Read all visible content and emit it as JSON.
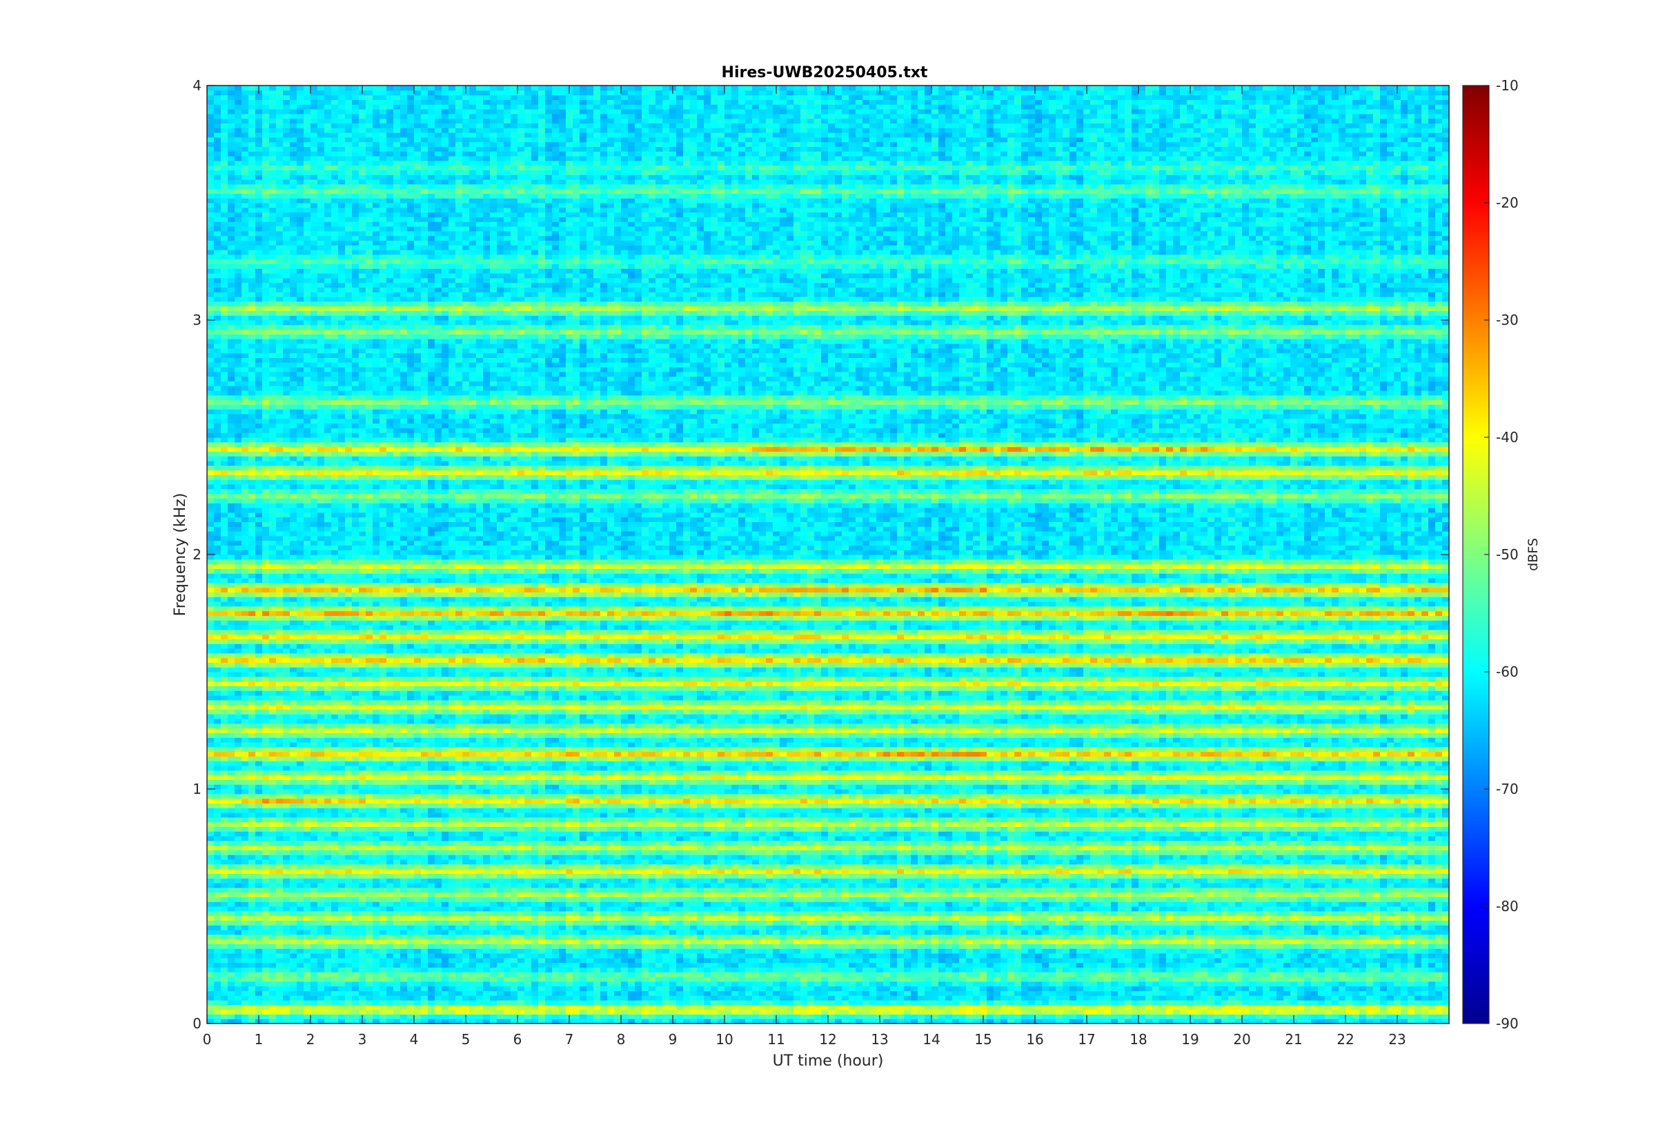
{
  "chart_data": {
    "type": "heatmap",
    "title": "Hires-UWB20250405.txt",
    "xlabel": "UT time (hour)",
    "ylabel": "Frequency (kHz)",
    "xlim": [
      0,
      24
    ],
    "ylim": [
      0,
      4
    ],
    "x_ticks": [
      "0",
      "1",
      "2",
      "3",
      "4",
      "5",
      "6",
      "7",
      "8",
      "9",
      "10",
      "11",
      "12",
      "13",
      "14",
      "15",
      "16",
      "17",
      "18",
      "19",
      "20",
      "21",
      "22",
      "23"
    ],
    "y_ticks": [
      "0",
      "1",
      "2",
      "3",
      "4"
    ],
    "colorbar": {
      "label": "dBFS",
      "limits": [
        -90,
        -10
      ],
      "colormap": "jet",
      "ticks": [
        "-10",
        "-20",
        "-30",
        "-40",
        "-50",
        "-60",
        "-70",
        "-80",
        "-90"
      ]
    },
    "grid": false,
    "background_level_dBFS": -62,
    "bands": [
      {
        "freq_khz": 0.06,
        "level_dBFS": -42
      },
      {
        "freq_khz": 0.2,
        "level_dBFS": -52
      },
      {
        "freq_khz": 0.35,
        "level_dBFS": -45
      },
      {
        "freq_khz": 0.45,
        "level_dBFS": -45
      },
      {
        "freq_khz": 0.55,
        "level_dBFS": -47
      },
      {
        "freq_khz": 0.65,
        "level_dBFS": -40
      },
      {
        "freq_khz": 0.75,
        "level_dBFS": -46
      },
      {
        "freq_khz": 0.85,
        "level_dBFS": -45
      },
      {
        "freq_khz": 0.95,
        "level_dBFS": -39
      },
      {
        "freq_khz": 1.05,
        "level_dBFS": -42
      },
      {
        "freq_khz": 1.15,
        "level_dBFS": -37
      },
      {
        "freq_khz": 1.25,
        "level_dBFS": -44
      },
      {
        "freq_khz": 1.35,
        "level_dBFS": -42
      },
      {
        "freq_khz": 1.45,
        "level_dBFS": -41
      },
      {
        "freq_khz": 1.55,
        "level_dBFS": -38
      },
      {
        "freq_khz": 1.65,
        "level_dBFS": -40
      },
      {
        "freq_khz": 1.75,
        "level_dBFS": -36
      },
      {
        "freq_khz": 1.85,
        "level_dBFS": -37
      },
      {
        "freq_khz": 1.95,
        "level_dBFS": -44
      },
      {
        "freq_khz": 2.25,
        "level_dBFS": -50
      },
      {
        "freq_khz": 2.35,
        "level_dBFS": -41
      },
      {
        "freq_khz": 2.45,
        "level_dBFS": -40
      },
      {
        "freq_khz": 2.65,
        "level_dBFS": -50
      },
      {
        "freq_khz": 2.95,
        "level_dBFS": -50
      },
      {
        "freq_khz": 3.05,
        "level_dBFS": -47
      },
      {
        "freq_khz": 3.25,
        "level_dBFS": -55
      },
      {
        "freq_khz": 3.55,
        "level_dBFS": -53
      },
      {
        "freq_khz": 3.65,
        "level_dBFS": -56
      }
    ],
    "hotspots": [
      {
        "x_hour": [
          10.6,
          19.4
        ],
        "freq_khz": 2.45,
        "level_dBFS": -35
      },
      {
        "x_hour": [
          10.6,
          19.4
        ],
        "freq_khz": 2.35,
        "level_dBFS": -40
      },
      {
        "x_hour": [
          13.0,
          15.0
        ],
        "freq_khz": 1.15,
        "level_dBFS": -33
      },
      {
        "x_hour": [
          11.0,
          15.0
        ],
        "freq_khz": 1.85,
        "level_dBFS": -34
      },
      {
        "x_hour": [
          17.5,
          19.0
        ],
        "freq_khz": 1.75,
        "level_dBFS": -32
      },
      {
        "x_hour": [
          0.0,
          7.5
        ],
        "freq_khz": 1.75,
        "level_dBFS": -35
      },
      {
        "x_hour": [
          10.0,
          11.2
        ],
        "freq_khz": 1.75,
        "level_dBFS": -32
      },
      {
        "x_hour": [
          0.5,
          3.0
        ],
        "freq_khz": 0.95,
        "level_dBFS": -36
      },
      {
        "x_hour": [
          4.2,
          24.0
        ],
        "freq_khz": 0.06,
        "level_dBFS": -40
      }
    ]
  }
}
